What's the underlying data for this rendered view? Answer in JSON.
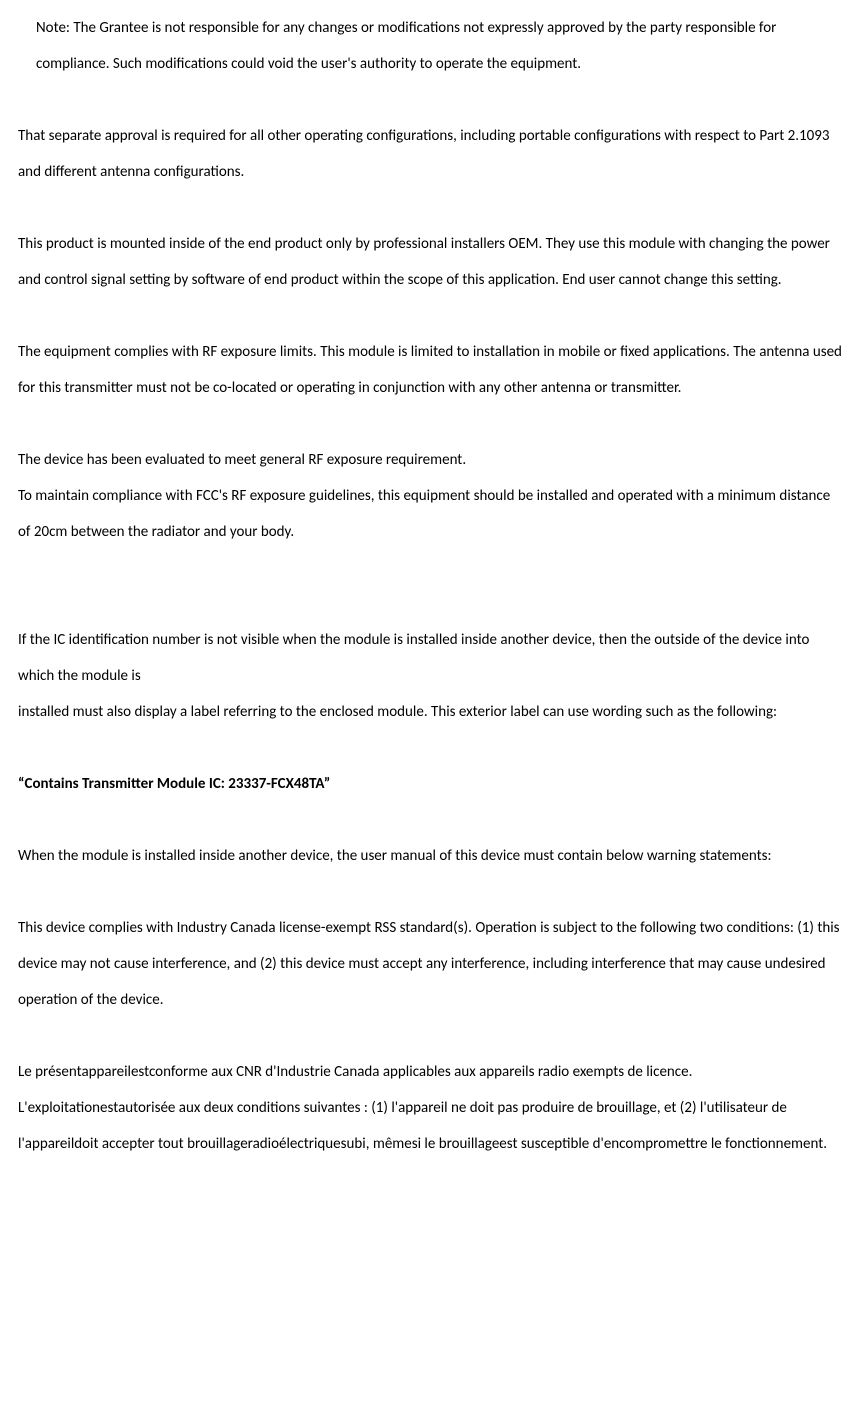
{
  "doc": {
    "note": "Note: The Grantee is not responsible for any changes or modifications not expressly approved by the party responsible for compliance. Such modifications could void the user's authority to operate the equipment.",
    "p1": "That separate approval is required for all other operating configurations, including portable configurations with respect to Part 2.1093 and different antenna configurations.",
    "p2": "This product is mounted inside of the end product only by professional installers OEM. They use this module with changing the power and control signal setting by software of end product within the scope of this application. End user cannot change this setting.",
    "p3": "The equipment complies with RF exposure limits. This module is limited to installation in mobile or fixed applications. The antenna used for this transmitter must not be co-located or operating in conjunction with any other antenna or transmitter.",
    "p4a": "The device has been evaluated to meet general RF exposure requirement.",
    "p4b": "To maintain compliance with FCC's RF exposure guidelines, this equipment should be installed and operated with a minimum distance of 20cm between the radiator and your body.",
    "p5a": "If the IC identification number is not visible when the module is installed inside another device, then the outside of the device into which the module is",
    "p5b": "installed must also display a label referring to the enclosed module. This exterior label can use wording such as the following:",
    "bold_line": "“Contains Transmitter Module IC: 23337-FCX48TA”",
    "p6": "When the module is installed inside another device, the user manual of this device must contain below warning statements:",
    "p7": "This device complies with Industry Canada license-exempt RSS standard(s). Operation is subject to the following two conditions: (1) this device may not cause interference, and (2) this device must accept any interference, including interference that may cause undesired operation of the device.",
    "p8": "Le présentappareilestconforme aux CNR d'Industrie Canada applicables aux appareils radio exempts de licence. L'exploitationestautorisée aux deux conditions suivantes : (1) l'appareil ne doit pas produire de brouillage, et (2) l'utilisateur de l'appareildoit accepter tout brouillageradioélectriquesubi, mêmesi le brouillageest susceptible d'encompromettre le fonctionnement."
  },
  "styles": {
    "font_family": "Calibri, Segoe UI, Arial, sans-serif",
    "font_size_pt": 11,
    "line_height": 2.4,
    "text_color": "#000000",
    "background_color": "#ffffff",
    "bold_weight": "bold"
  }
}
